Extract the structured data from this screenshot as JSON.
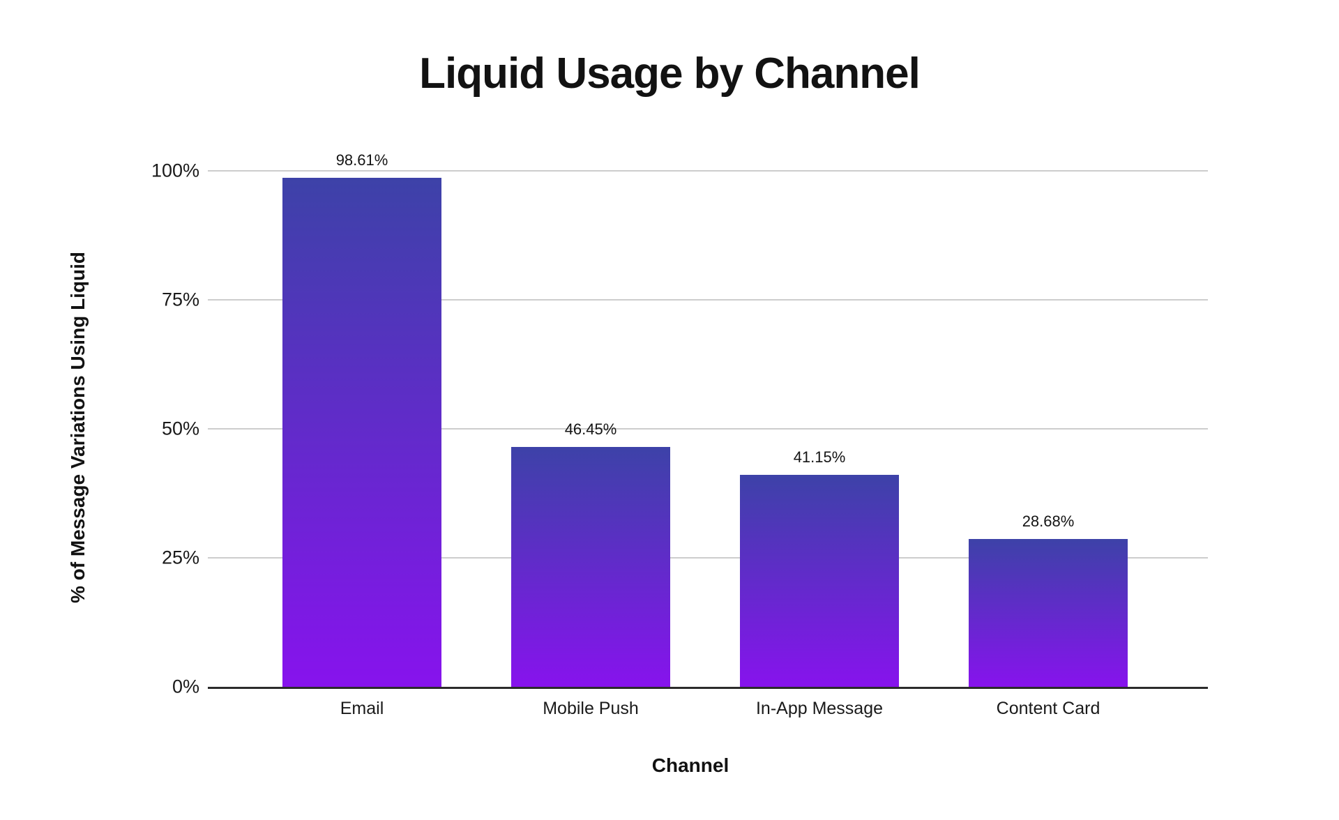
{
  "page": {
    "background_color": "#ffffff",
    "text_color": "#161616"
  },
  "chart_data": {
    "type": "bar",
    "title": "Liquid Usage by Channel",
    "xlabel": "Channel",
    "ylabel": "% of Message Variations Using Liquid",
    "categories": [
      "Email",
      "Mobile Push",
      "In-App Message",
      "Content Card"
    ],
    "values": [
      98.61,
      46.45,
      41.15,
      28.68
    ],
    "value_labels": [
      "98.61%",
      "46.45%",
      "41.15%",
      "28.68%"
    ],
    "yticks": [
      0,
      25,
      50,
      75,
      100
    ],
    "ytick_labels": [
      "0%",
      "25%",
      "50%",
      "75%",
      "100%"
    ],
    "ylim": [
      0,
      100
    ],
    "grid": "horizontal",
    "gridline_color": "#cdcdcd",
    "axis_line_color": "#2b2b2b",
    "legend": "none",
    "bar_gradient_top": "#3d42a8",
    "bar_gradient_bottom": "#8713ed"
  }
}
